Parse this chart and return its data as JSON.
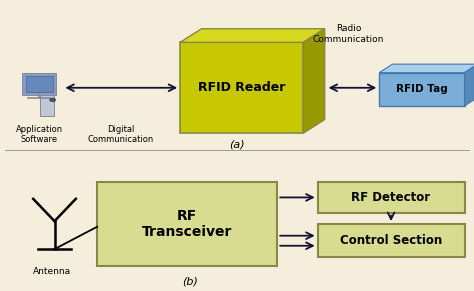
{
  "background_color": "#f5eedc",
  "rfid_reader_front": "#c8c800",
  "rfid_reader_top": "#d8d820",
  "rfid_reader_right": "#989800",
  "rfid_tag_front": "#7aaed8",
  "rfid_tag_top": "#aad0ee",
  "rfid_tag_right": "#5588bb",
  "rf_transceiver_color": "#d8dc90",
  "rf_detector_color": "#d8dc90",
  "control_section_color": "#d8dc90",
  "box_edge_color": "#888844",
  "arrow_color": "#111133",
  "text_color": "#000000",
  "label_a": "(a)",
  "label_b": "(b)",
  "rfid_reader_text": "RFID Reader",
  "rfid_tag_text": "RFID Tag",
  "radio_comm_text": "Radio\nCommunication",
  "app_software_text": "Application\nSoftware",
  "digital_comm_text": "Digital\nCommunication",
  "rf_transceiver_text": "RF\nTransceiver",
  "rf_detector_text": "RF Detector",
  "control_section_text": "Control Section",
  "antenna_text": "Antenna"
}
